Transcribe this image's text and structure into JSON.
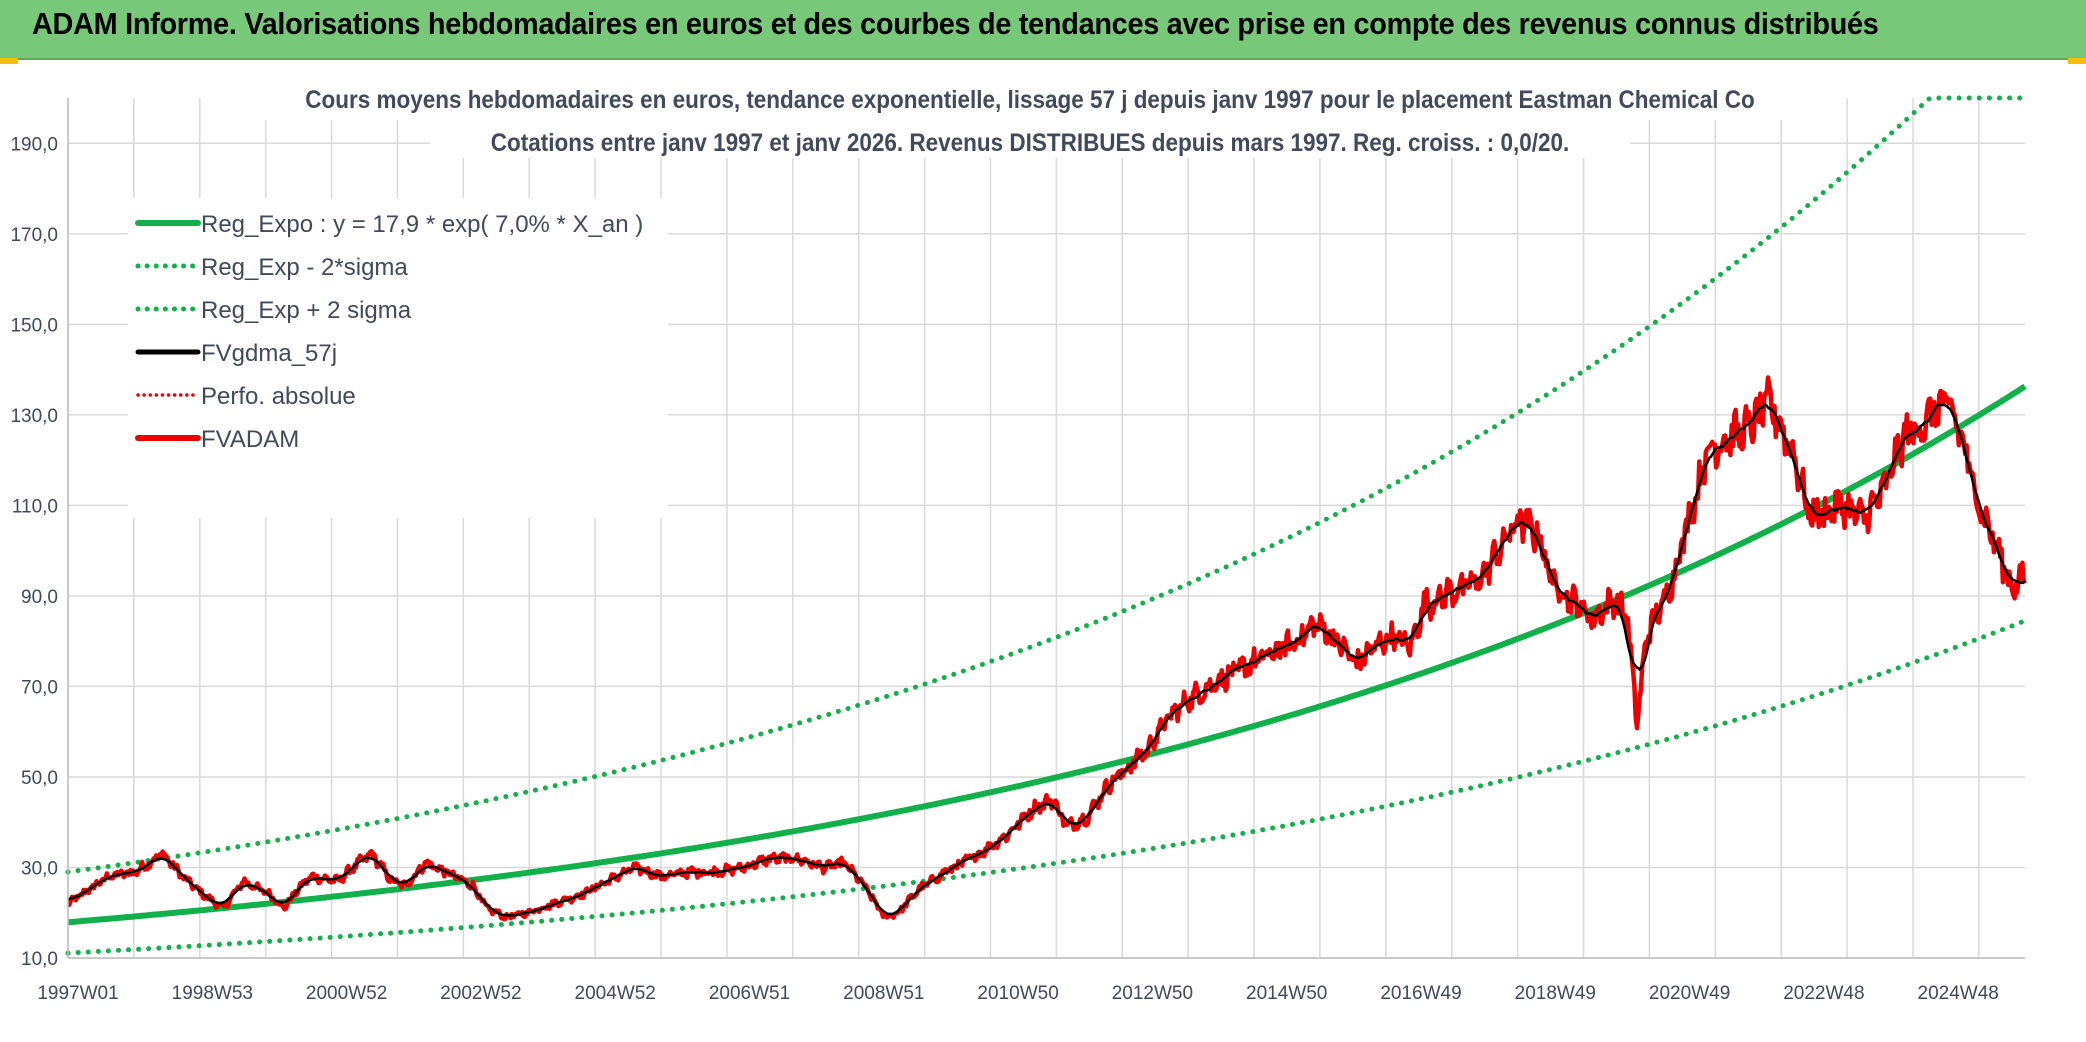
{
  "banner": {
    "title": "ADAM Informe. Valorisations hebdomadaires en euros et des courbes de tendances avec prise en compte des revenus connus distribués"
  },
  "colors": {
    "banner_bg": "#77c979",
    "reg_expo": "#12b04a",
    "price": "#ee0000",
    "smooth": "#000000",
    "grid": "#d9d9d9",
    "text": "#404a5c"
  },
  "chart_data": {
    "type": "line",
    "title": "Cours moyens hebdomadaires en euros, tendance exponentielle, lissage 57 j depuis janv 1997 pour le placement Eastman Chemical Co",
    "subtitle": "Cotations entre janv 1997 et janv 2026. Revenus DISTRIBUES depuis mars 1997. Reg. croiss. : 0,0/20.",
    "xlabel": "",
    "ylabel": "",
    "ylim": [
      10,
      200
    ],
    "yticks": [
      "10,0",
      "30,0",
      "50,0",
      "70,0",
      "90,0",
      "110,0",
      "130,0",
      "150,0",
      "170,0",
      "190,0"
    ],
    "xticks": [
      "1997W01",
      "1998W53",
      "2000W52",
      "2002W52",
      "2004W52",
      "2006W51",
      "2008W51",
      "2010W50",
      "2012W50",
      "2014W50",
      "2016W49",
      "2018W49",
      "2020W49",
      "2022W48",
      "2024W48"
    ],
    "x_range_years": [
      1997.0,
      2026.0
    ],
    "grid": true,
    "legend_position": "top-left",
    "legend": [
      "Reg_Expo : y = 17,9 * exp( 7,0% *  X_an )",
      "Reg_Exp - 2*sigma",
      "Reg_Exp + 2 sigma",
      "FVgdma_57j",
      "Perfo. absolue",
      "FVADAM"
    ],
    "regression": {
      "a": 17.9,
      "rate": 0.07,
      "sigma_factor_upper": 1.62,
      "sigma_factor_lower": 0.62
    },
    "price_keypoints": [
      [
        1997.0,
        22
      ],
      [
        1997.3,
        25
      ],
      [
        1997.6,
        28
      ],
      [
        1998.0,
        29
      ],
      [
        1998.4,
        33
      ],
      [
        1998.7,
        28
      ],
      [
        1999.0,
        24
      ],
      [
        1999.3,
        21
      ],
      [
        1999.6,
        27
      ],
      [
        2000.0,
        24
      ],
      [
        2000.2,
        21
      ],
      [
        2000.4,
        25
      ],
      [
        2000.6,
        28
      ],
      [
        2001.0,
        27
      ],
      [
        2001.3,
        31
      ],
      [
        2001.5,
        33
      ],
      [
        2001.8,
        27
      ],
      [
        2002.0,
        26
      ],
      [
        2002.3,
        31
      ],
      [
        2002.6,
        29
      ],
      [
        2003.0,
        26
      ],
      [
        2003.2,
        21
      ],
      [
        2003.5,
        19
      ],
      [
        2003.8,
        20
      ],
      [
        2004.2,
        22
      ],
      [
        2004.6,
        24
      ],
      [
        2005.0,
        27
      ],
      [
        2005.4,
        30
      ],
      [
        2005.8,
        28
      ],
      [
        2006.2,
        29
      ],
      [
        2006.6,
        29
      ],
      [
        2007.0,
        30
      ],
      [
        2007.4,
        32
      ],
      [
        2007.8,
        32
      ],
      [
        2008.2,
        30
      ],
      [
        2008.5,
        31
      ],
      [
        2008.8,
        26
      ],
      [
        2009.1,
        19
      ],
      [
        2009.3,
        20
      ],
      [
        2009.6,
        25
      ],
      [
        2010.0,
        29
      ],
      [
        2010.5,
        33
      ],
      [
        2010.9,
        37
      ],
      [
        2011.3,
        43
      ],
      [
        2011.6,
        45
      ],
      [
        2011.8,
        39
      ],
      [
        2012.1,
        41
      ],
      [
        2012.4,
        48
      ],
      [
        2012.7,
        52
      ],
      [
        2013.0,
        56
      ],
      [
        2013.3,
        63
      ],
      [
        2013.6,
        67
      ],
      [
        2014.0,
        71
      ],
      [
        2014.4,
        74
      ],
      [
        2014.8,
        77
      ],
      [
        2015.2,
        80
      ],
      [
        2015.5,
        84
      ],
      [
        2015.8,
        80
      ],
      [
        2016.1,
        75
      ],
      [
        2016.3,
        78
      ],
      [
        2016.6,
        81
      ],
      [
        2016.9,
        79
      ],
      [
        2017.1,
        88
      ],
      [
        2017.5,
        91
      ],
      [
        2017.9,
        93
      ],
      [
        2018.2,
        100
      ],
      [
        2018.5,
        107
      ],
      [
        2018.8,
        103
      ],
      [
        2019.0,
        93
      ],
      [
        2019.3,
        89
      ],
      [
        2019.6,
        85
      ],
      [
        2019.9,
        89
      ],
      [
        2020.1,
        86
      ],
      [
        2020.25,
        62
      ],
      [
        2020.4,
        82
      ],
      [
        2020.7,
        90
      ],
      [
        2021.0,
        106
      ],
      [
        2021.3,
        122
      ],
      [
        2021.6,
        125
      ],
      [
        2021.9,
        127
      ],
      [
        2022.2,
        133
      ],
      [
        2022.4,
        127
      ],
      [
        2022.6,
        120
      ],
      [
        2022.8,
        108
      ],
      [
        2023.0,
        108
      ],
      [
        2023.3,
        110
      ],
      [
        2023.6,
        107
      ],
      [
        2023.9,
        113
      ],
      [
        2024.2,
        125
      ],
      [
        2024.5,
        128
      ],
      [
        2024.8,
        133
      ],
      [
        2025.0,
        128
      ],
      [
        2025.3,
        111
      ],
      [
        2025.6,
        100
      ],
      [
        2025.8,
        92
      ],
      [
        2026.0,
        94
      ]
    ]
  }
}
